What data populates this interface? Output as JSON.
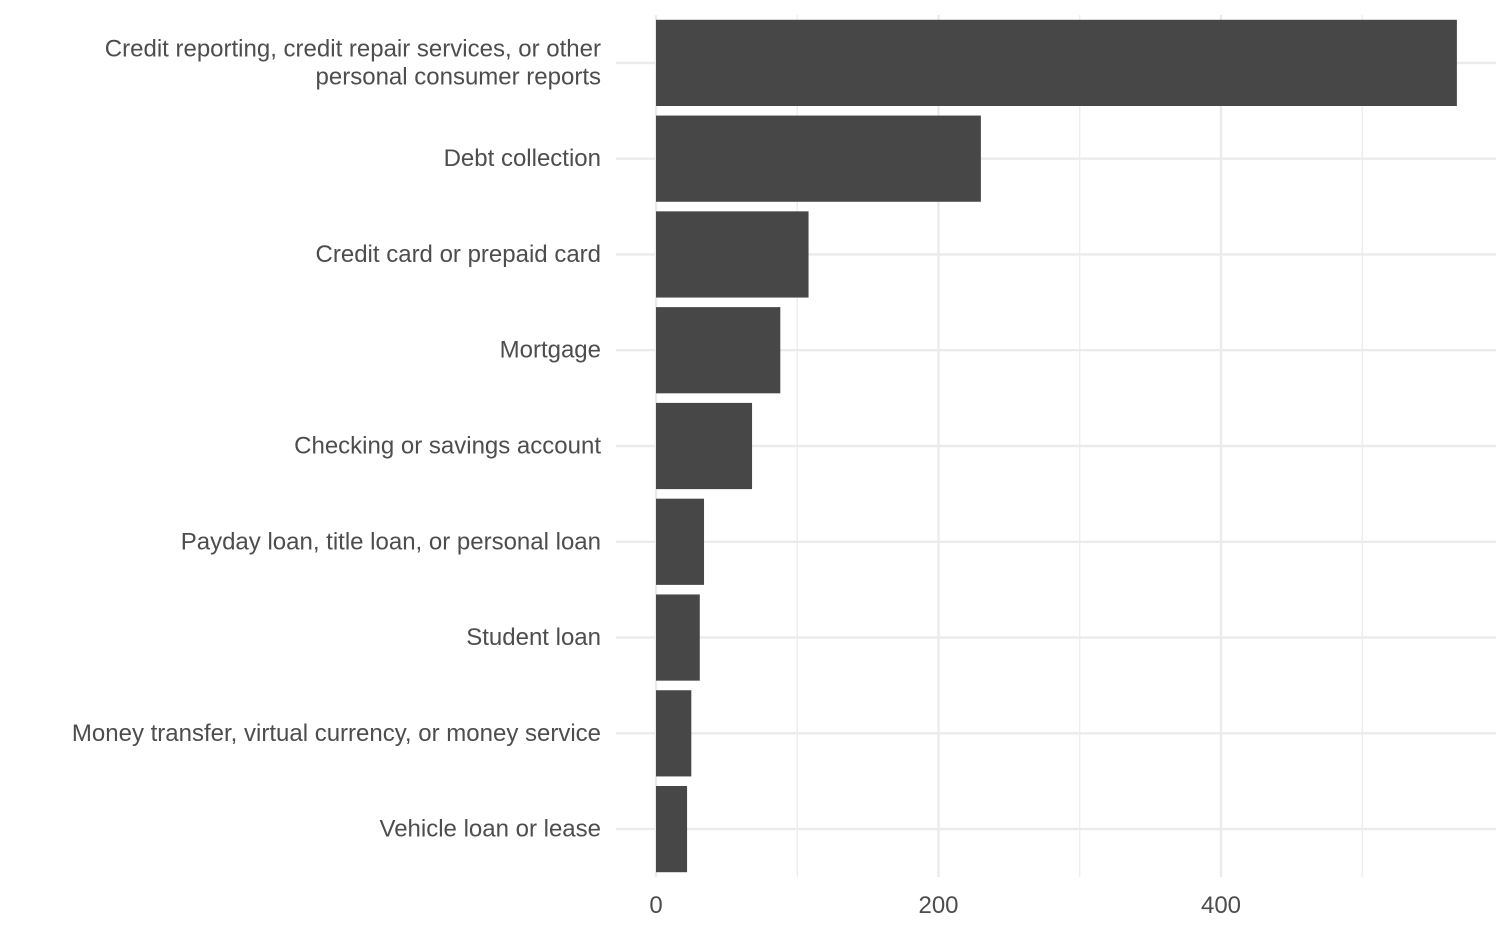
{
  "chart_data": {
    "type": "bar",
    "orientation": "horizontal",
    "title": "",
    "xlabel": "",
    "ylabel": "",
    "categories": [
      "Credit reporting, credit repair services, or other personal consumer reports",
      "Debt collection",
      "Credit card or prepaid card",
      "Mortgage",
      "Checking or savings account",
      "Payday loan, title loan, or personal loan",
      "Student loan",
      "Money transfer, virtual currency, or money service",
      "Vehicle loan or lease"
    ],
    "category_label_lines": [
      [
        "Credit reporting, credit repair services, or other",
        "personal consumer reports"
      ],
      [
        "Debt collection"
      ],
      [
        "Credit card or prepaid card"
      ],
      [
        "Mortgage"
      ],
      [
        "Checking or savings account"
      ],
      [
        "Payday loan, title loan, or personal loan"
      ],
      [
        "Student loan"
      ],
      [
        "Money transfer, virtual currency, or money service"
      ],
      [
        "Vehicle loan or lease"
      ]
    ],
    "values": [
      567,
      230,
      108,
      88,
      68,
      34,
      31,
      25,
      22
    ],
    "xlim": [
      0,
      594
    ],
    "xticks": [
      0,
      200,
      400
    ],
    "x_minor_gridlines": [
      100,
      300,
      500
    ],
    "grid": true,
    "legend": "none",
    "bar_color": "#474747",
    "grid_color": "#ebebeb",
    "text_color": "#4d4d4d",
    "background": "#ffffff"
  }
}
